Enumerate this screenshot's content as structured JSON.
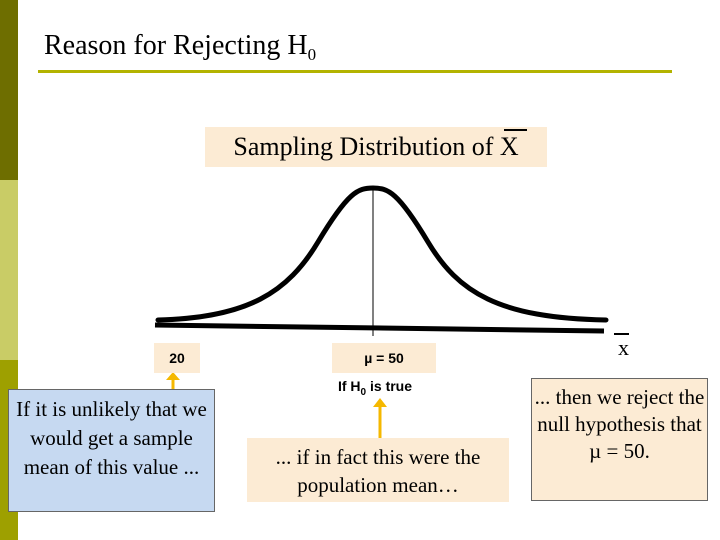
{
  "title": {
    "text": "Reason for Rejecting H",
    "sub": "0"
  },
  "distribution_label": {
    "prefix": "Sampling Distribution of ",
    "symbol": "X"
  },
  "axis_label": "x",
  "value_20": "20",
  "mu_label": "µ = 50",
  "h0_note": {
    "prefix": "If H",
    "sub": "0",
    "suffix": " is true"
  },
  "left_box": "If it is unlikely that we would get a sample mean of this value ...",
  "mid_box": "... if in fact this were the population mean…",
  "right_box": "... then we reject the null hypothesis that µ = 50.",
  "colors": {
    "stripe_dark": "#6e6e00",
    "stripe_light": "#c9cc66",
    "rule": "#b3b300",
    "peach": "#fcebd4",
    "blue": "#c6d9f1",
    "arrow": "#f5b800"
  }
}
